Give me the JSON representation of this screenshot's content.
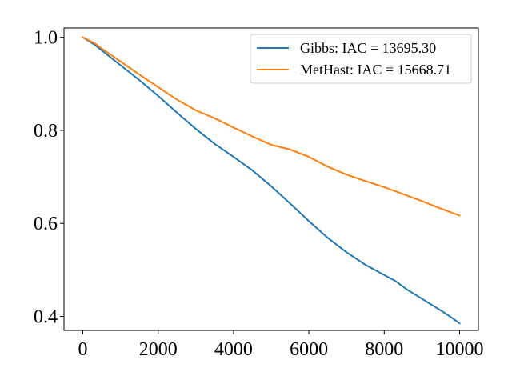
{
  "chart_data": {
    "type": "line",
    "title": "",
    "xlabel": "",
    "ylabel": "",
    "xlim": [
      -500,
      10500
    ],
    "ylim": [
      0.37,
      1.02
    ],
    "grid": false,
    "legend_position": "top-right",
    "x_ticks": [
      0,
      2000,
      4000,
      6000,
      8000,
      10000
    ],
    "y_ticks": [
      0.4,
      0.6,
      0.8,
      1.0
    ],
    "x_tick_labels": [
      "0",
      "2000",
      "4000",
      "6000",
      "8000",
      "10000"
    ],
    "y_tick_labels": [
      "0.4",
      "0.6",
      "0.8",
      "1.0"
    ],
    "series": [
      {
        "name": "Gibbs: IAC = 13695.30",
        "color": "#1f77b4",
        "x": [
          0,
          300,
          500,
          1000,
          1500,
          2000,
          2500,
          3000,
          3500,
          4000,
          4500,
          5000,
          5500,
          6000,
          6500,
          7000,
          7500,
          8000,
          8300,
          8600,
          9000,
          9500,
          9800,
          10000
        ],
        "y": [
          1.0,
          0.985,
          0.972,
          0.94,
          0.908,
          0.874,
          0.838,
          0.803,
          0.771,
          0.743,
          0.714,
          0.68,
          0.643,
          0.605,
          0.569,
          0.538,
          0.511,
          0.489,
          0.476,
          0.458,
          0.438,
          0.413,
          0.397,
          0.385
        ]
      },
      {
        "name": "MetHast: IAC = 15668.71",
        "color": "#ff7f0e",
        "x": [
          0,
          300,
          500,
          1000,
          1500,
          2000,
          2500,
          3000,
          3500,
          4000,
          4500,
          5000,
          5500,
          6000,
          6500,
          7000,
          7500,
          8000,
          8500,
          9000,
          9500,
          10000
        ],
        "y": [
          1.0,
          0.988,
          0.976,
          0.948,
          0.92,
          0.893,
          0.866,
          0.843,
          0.826,
          0.806,
          0.787,
          0.769,
          0.759,
          0.743,
          0.722,
          0.705,
          0.691,
          0.678,
          0.663,
          0.648,
          0.632,
          0.617
        ]
      }
    ]
  }
}
